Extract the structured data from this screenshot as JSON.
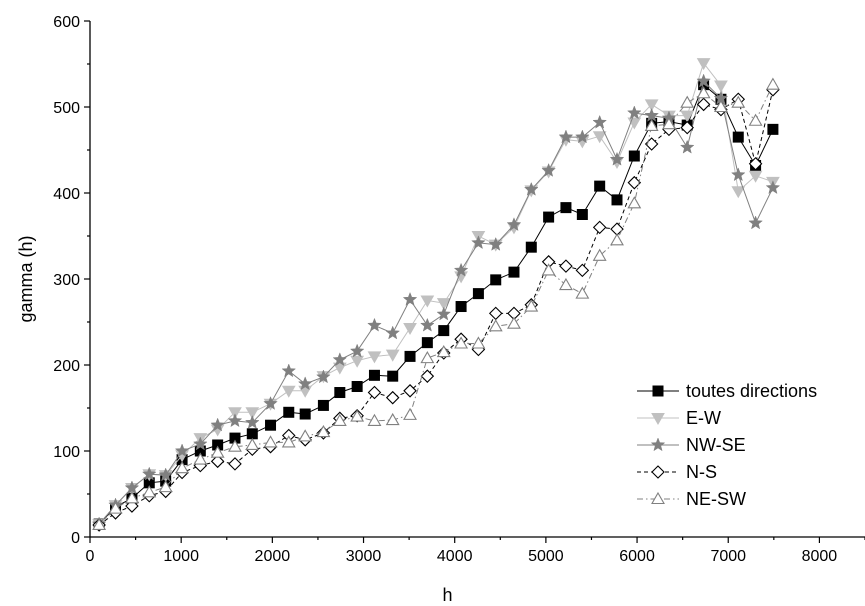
{
  "chart_data": {
    "type": "line",
    "title": "",
    "xlabel": "h",
    "ylabel": "gamma (h)",
    "xlim": [
      0,
      8500
    ],
    "ylim": [
      0,
      600
    ],
    "xticks": [
      0,
      1000,
      2000,
      3000,
      4000,
      5000,
      6000,
      7000,
      8000
    ],
    "yticks": [
      0,
      100,
      200,
      300,
      400,
      500,
      600
    ],
    "grid": false,
    "legend_position": "bottom-right",
    "x": [
      100,
      280,
      460,
      650,
      830,
      1010,
      1210,
      1400,
      1590,
      1780,
      1980,
      2180,
      2360,
      2560,
      2740,
      2930,
      3120,
      3320,
      3510,
      3700,
      3880,
      4070,
      4260,
      4450,
      4650,
      4840,
      5030,
      5220,
      5400,
      5590,
      5780,
      5970,
      6160,
      6350,
      6550,
      6730,
      6920,
      7110,
      7300,
      7490
    ],
    "series": [
      {
        "name": "toutes directions",
        "color": "#000000",
        "marker": "filled-square",
        "dash": "solid",
        "values": [
          15,
          35,
          45,
          63,
          65,
          90,
          100,
          107,
          115,
          120,
          130,
          145,
          143,
          153,
          168,
          175,
          188,
          187,
          210,
          226,
          240,
          268,
          283,
          299,
          308,
          337,
          372,
          383,
          375,
          408,
          392,
          443,
          481,
          483,
          479,
          526,
          509,
          465,
          432,
          474
        ]
      },
      {
        "name": "E-W",
        "color": "#c0c0c0",
        "marker": "filled-triangle-down",
        "dash": "solid",
        "values": [
          15,
          37,
          57,
          73,
          72,
          95,
          115,
          125,
          145,
          145,
          155,
          170,
          170,
          187,
          197,
          205,
          210,
          212,
          243,
          275,
          272,
          303,
          350,
          340,
          360,
          403,
          425,
          462,
          460,
          466,
          436,
          482,
          503,
          490,
          490,
          551,
          525,
          402,
          420,
          413
        ]
      },
      {
        "name": "NW-SE",
        "color": "#808080",
        "marker": "filled-star",
        "dash": "solid",
        "values": [
          15,
          37,
          57,
          73,
          72,
          100,
          108,
          130,
          135,
          133,
          155,
          193,
          178,
          186,
          206,
          216,
          246,
          237,
          276,
          246,
          259,
          310,
          342,
          340,
          363,
          404,
          426,
          465,
          465,
          482,
          439,
          493,
          490,
          487,
          453,
          530,
          510,
          421,
          365,
          406
        ]
      },
      {
        "name": "N-S",
        "color": "#000000",
        "marker": "open-diamond",
        "dash": "short-dash",
        "values": [
          14,
          28,
          36,
          48,
          53,
          75,
          83,
          88,
          85,
          102,
          105,
          118,
          113,
          121,
          138,
          141,
          168,
          162,
          170,
          187,
          214,
          230,
          218,
          260,
          260,
          270,
          320,
          315,
          310,
          360,
          358,
          412,
          457,
          474,
          476,
          503,
          497,
          509,
          434,
          520
        ]
      },
      {
        "name": "NE-SW",
        "color": "#808080",
        "marker": "open-triangle-up",
        "dash": "dash-dot",
        "values": [
          14,
          33,
          45,
          52,
          58,
          80,
          90,
          98,
          105,
          107,
          110,
          110,
          117,
          122,
          135,
          140,
          135,
          136,
          142,
          208,
          215,
          225,
          225,
          245,
          248,
          268,
          310,
          293,
          283,
          327,
          345,
          388,
          478,
          480,
          505,
          516,
          500,
          505,
          484,
          526
        ]
      }
    ]
  }
}
